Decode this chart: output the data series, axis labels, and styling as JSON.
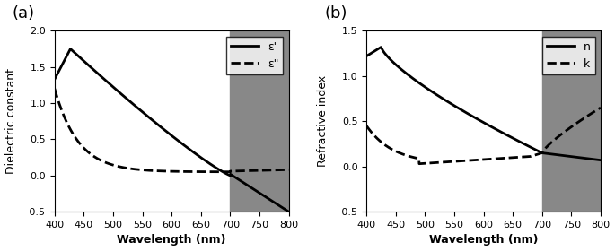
{
  "xlim": [
    400,
    800
  ],
  "ylim_a": [
    -0.5,
    2.0
  ],
  "ylim_b": [
    -0.5,
    1.5
  ],
  "xticks": [
    400,
    450,
    500,
    550,
    600,
    650,
    700,
    750,
    800
  ],
  "yticks_a": [
    -0.5,
    0.0,
    0.5,
    1.0,
    1.5,
    2.0
  ],
  "yticks_b": [
    -0.5,
    0.0,
    0.5,
    1.0,
    1.5
  ],
  "shade_start": 700,
  "shade_color": "#888888",
  "xlabel": "Wavelength (nm)",
  "ylabel_a": "Dielectric constant",
  "ylabel_b": "Refractive index",
  "label_a": "(a)",
  "label_b": "(b)",
  "legend_a": [
    "ε'",
    "ε\""
  ],
  "legend_b": [
    "n",
    "k"
  ],
  "line_color": "black",
  "linewidth": 2.0
}
